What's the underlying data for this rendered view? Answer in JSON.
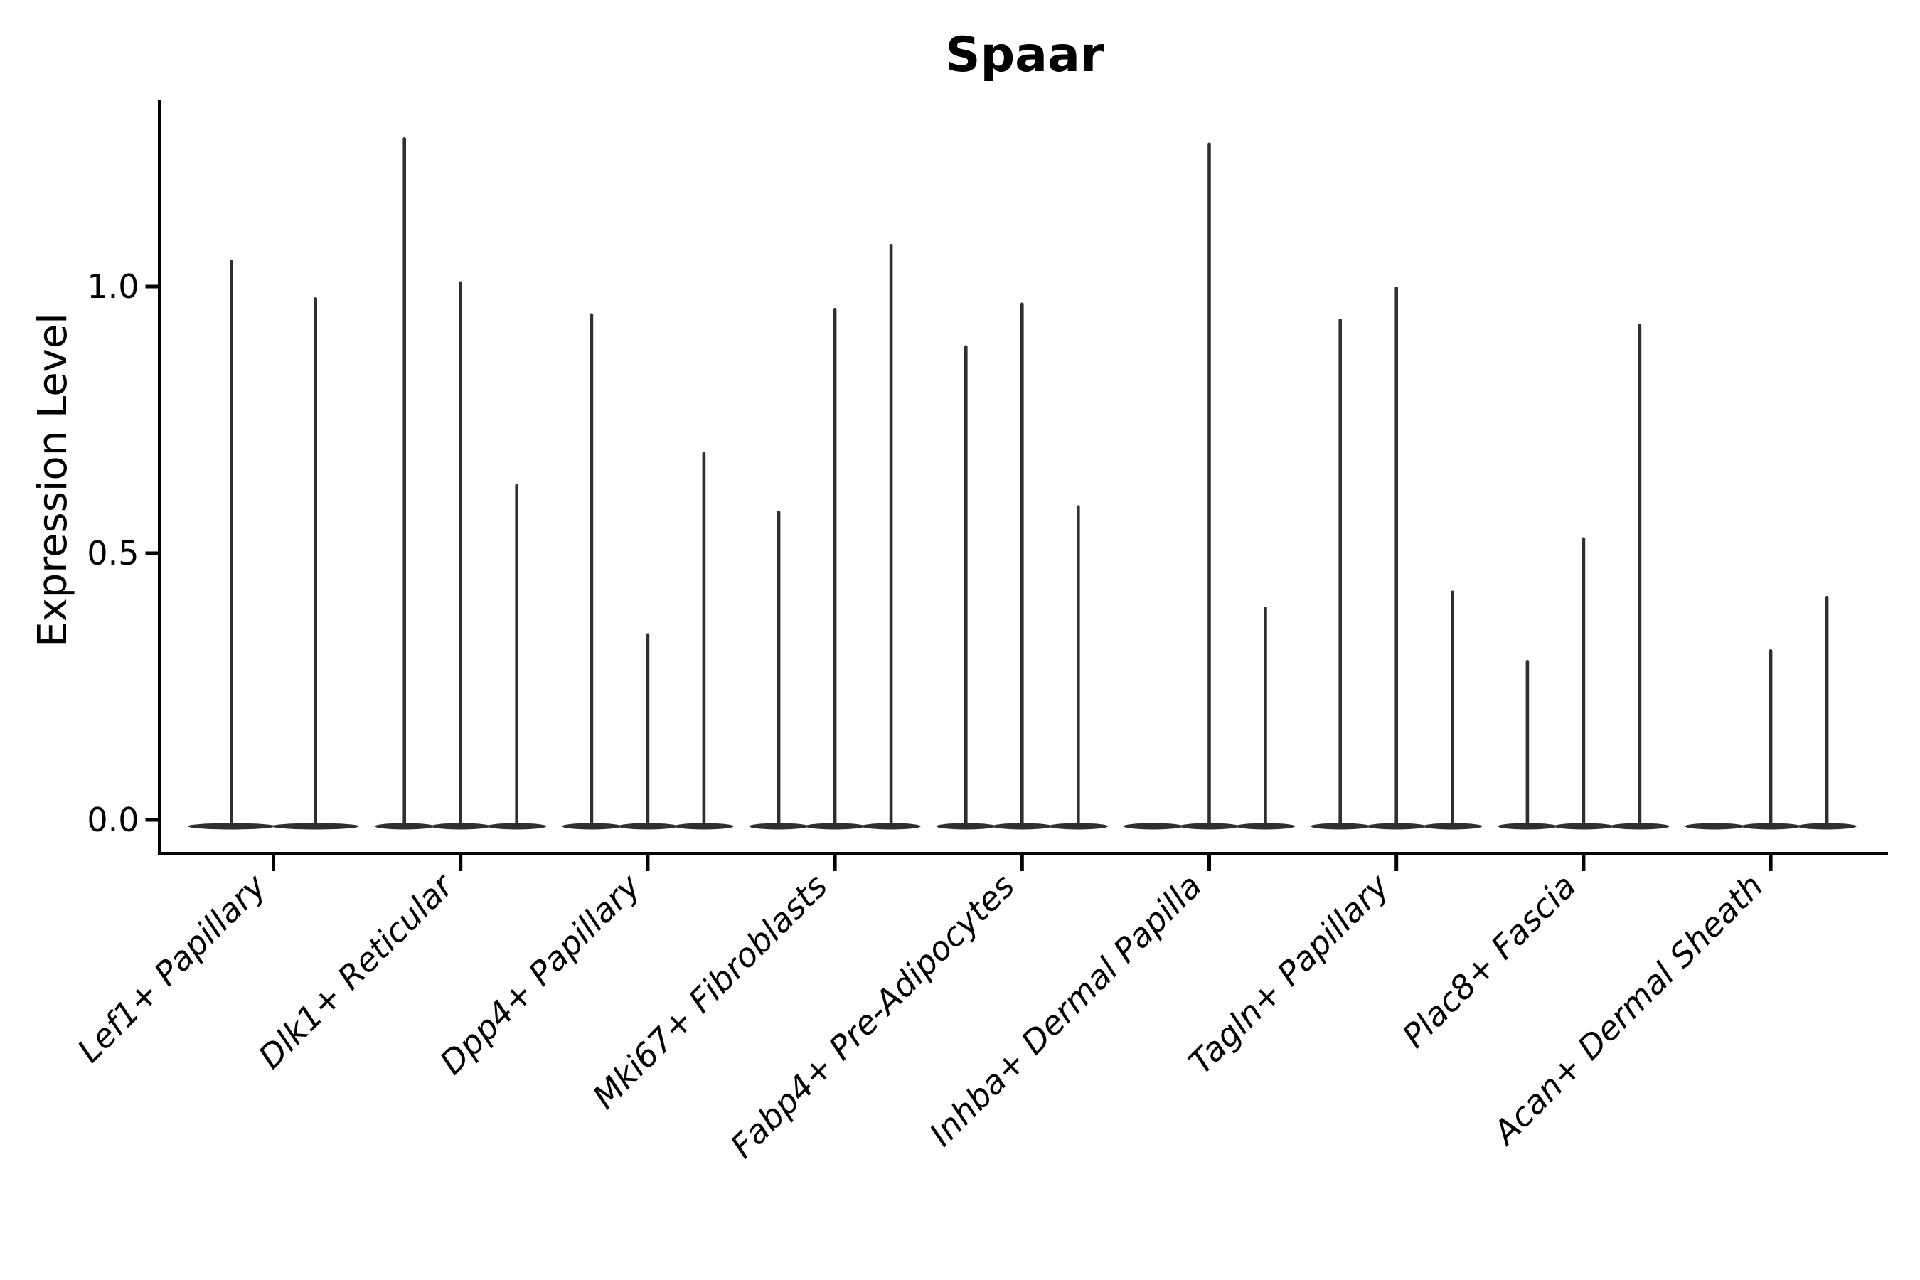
{
  "chart_data": {
    "type": "violin",
    "title": "Spaar",
    "ylabel": "Expression Level",
    "xlabel": "",
    "yticks": [
      {
        "label": "0.0",
        "value": 0.0
      },
      {
        "label": "0.5",
        "value": 0.5
      },
      {
        "label": "1.0",
        "value": 1.0
      }
    ],
    "ylim": [
      -0.06,
      1.35
    ],
    "grid": false,
    "legend": "none",
    "colors": {
      "violin": "#2f2f2f",
      "axis": "#000000",
      "text": "#000000",
      "background": "#ffffff"
    },
    "groups": [
      {
        "label": "Lef1+ Papillary",
        "violin_max": [
          1.05,
          0.98
        ]
      },
      {
        "label": "Dlk1+ Reticular",
        "violin_max": [
          1.28,
          1.01,
          0.63
        ]
      },
      {
        "label": "Dpp4+ Papillary",
        "violin_max": [
          0.95,
          0.35,
          0.69
        ]
      },
      {
        "label": "Mki67+ Fibroblasts",
        "violin_max": [
          0.58,
          0.96,
          1.08
        ]
      },
      {
        "label": "Fabp4+ Pre-Adipocytes",
        "violin_max": [
          0.89,
          0.97,
          0.59
        ]
      },
      {
        "label": "Inhba+ Dermal Papilla",
        "violin_max": [
          0.0,
          1.27,
          0.4
        ]
      },
      {
        "label": "Tagln+ Papillary",
        "violin_max": [
          0.94,
          1.0,
          0.43
        ]
      },
      {
        "label": "Plac8+ Fascia",
        "violin_max": [
          0.3,
          0.53,
          0.93
        ]
      },
      {
        "label": "Acan+ Dermal Sheath",
        "violin_max": [
          0.0,
          0.32,
          0.42
        ]
      }
    ],
    "note": "violin_max 0.0 means a flat violin (all values at 0); every violin has its bulk mass at 0 forming the wide base line"
  }
}
